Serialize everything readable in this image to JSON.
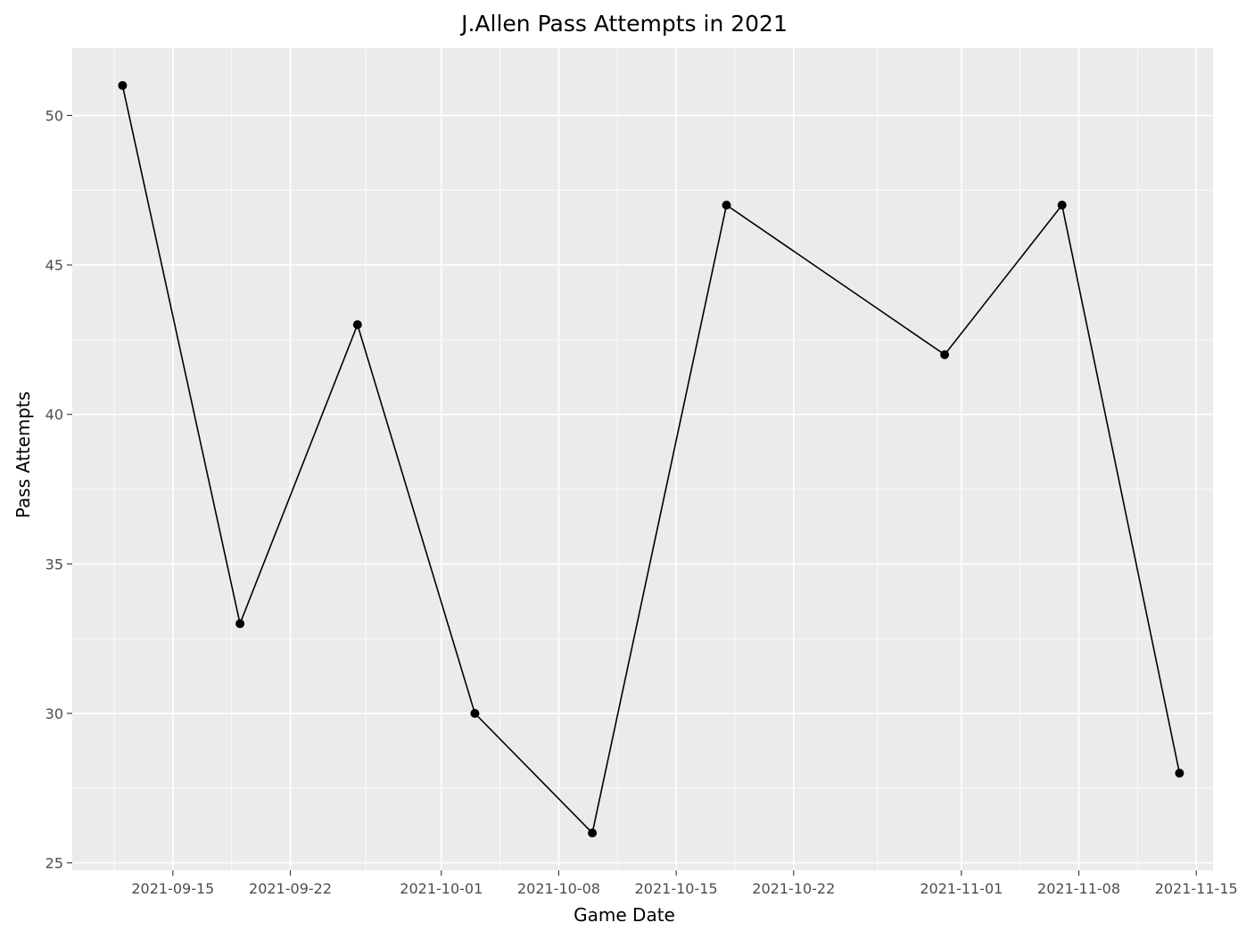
{
  "chart_data": {
    "type": "line",
    "title": "J.Allen Pass Attempts in 2021",
    "xlabel": "Game Date",
    "ylabel": "Pass Attempts",
    "x": [
      "2021-09-12",
      "2021-09-19",
      "2021-09-26",
      "2021-10-03",
      "2021-10-10",
      "2021-10-18",
      "2021-10-31",
      "2021-11-07",
      "2021-11-14"
    ],
    "y": [
      51,
      33,
      43,
      30,
      26,
      47,
      42,
      47,
      28
    ],
    "x_ticks": [
      "2021-09-15",
      "2021-09-22",
      "2021-10-01",
      "2021-10-08",
      "2021-10-15",
      "2021-10-22",
      "2021-11-01",
      "2021-11-08",
      "2021-11-15"
    ],
    "y_ticks": [
      25,
      30,
      35,
      40,
      45,
      50
    ],
    "xlim": [
      "2021-09-09",
      "2021-11-16"
    ],
    "ylim": [
      24.75,
      52.25
    ],
    "grid": true,
    "legend": "none",
    "colors": {
      "panel": "#ebebeb",
      "grid": "#ffffff",
      "line": "#000000",
      "point": "#000000"
    }
  }
}
